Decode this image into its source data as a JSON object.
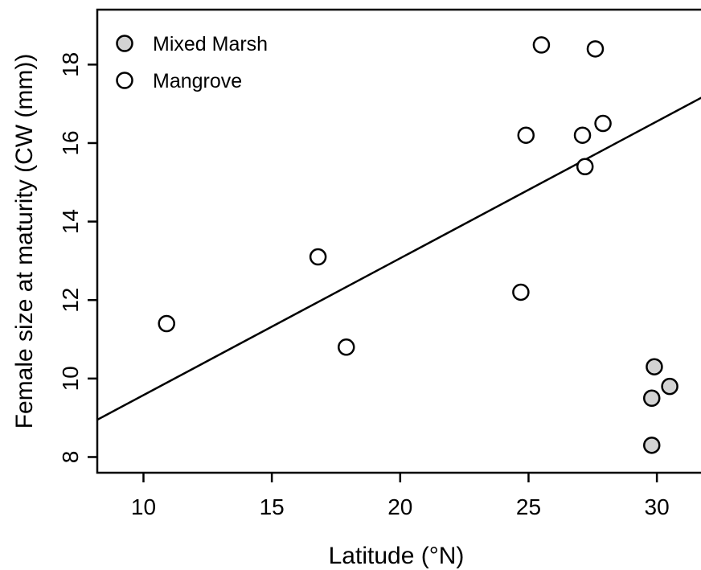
{
  "chart_data": {
    "type": "scatter",
    "title": "",
    "xlabel": "Latitude (°N)",
    "ylabel": "Female size at maturity (CW (mm))",
    "xlim": [
      8.2,
      32.0
    ],
    "ylim": [
      7.6,
      19.4
    ],
    "xticks": [
      10,
      15,
      20,
      25,
      30
    ],
    "yticks": [
      8,
      10,
      12,
      14,
      16,
      18
    ],
    "grid": false,
    "legend_position": "top-left",
    "series": [
      {
        "name": "Mixed Marsh",
        "fill": "#d3d3d3",
        "points": [
          {
            "x": 29.8,
            "y": 8.3
          },
          {
            "x": 29.8,
            "y": 9.5
          },
          {
            "x": 29.9,
            "y": 10.3
          },
          {
            "x": 30.5,
            "y": 9.8
          }
        ]
      },
      {
        "name": "Mangrove",
        "fill": "#ffffff",
        "points": [
          {
            "x": 10.9,
            "y": 11.4
          },
          {
            "x": 16.8,
            "y": 13.1
          },
          {
            "x": 17.9,
            "y": 10.8
          },
          {
            "x": 24.7,
            "y": 12.2
          },
          {
            "x": 24.9,
            "y": 16.2
          },
          {
            "x": 25.5,
            "y": 18.5
          },
          {
            "x": 27.1,
            "y": 16.2
          },
          {
            "x": 27.2,
            "y": 15.4
          },
          {
            "x": 27.6,
            "y": 18.4
          },
          {
            "x": 27.9,
            "y": 16.5
          }
        ]
      }
    ],
    "regression_line": {
      "x": [
        8.2,
        32.0
      ],
      "y": [
        8.95,
        17.25
      ]
    }
  }
}
